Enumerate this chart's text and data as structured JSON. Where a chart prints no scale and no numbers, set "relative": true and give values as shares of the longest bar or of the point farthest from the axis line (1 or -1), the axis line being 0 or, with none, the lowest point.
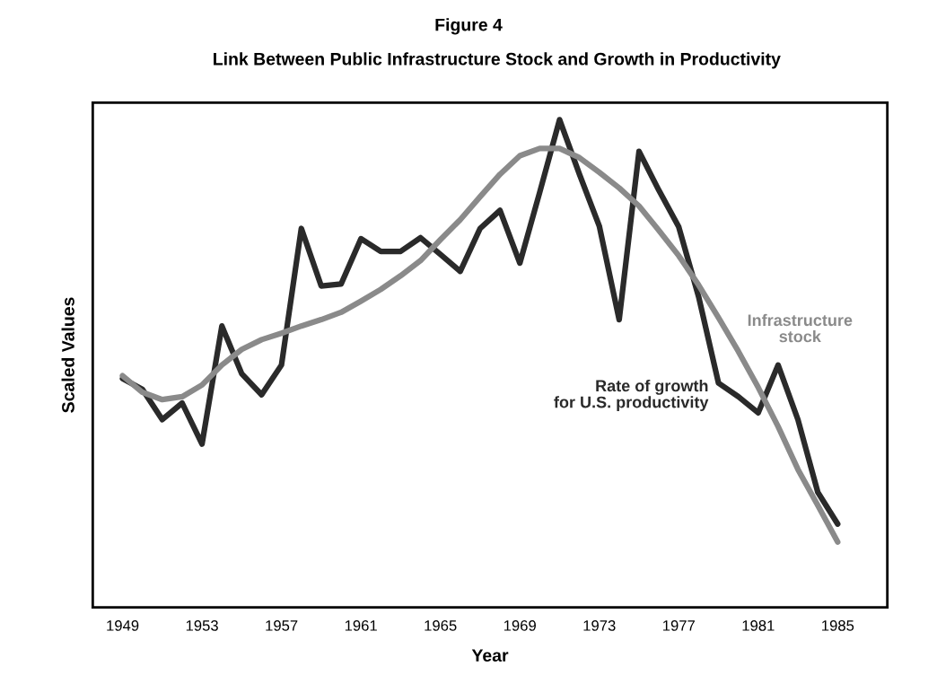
{
  "chart_data": {
    "type": "line",
    "title": "Figure 4",
    "subtitle": "Link Between Public Infrastructure Stock and Growth in Productivity",
    "xlabel": "Year",
    "ylabel": "Scaled Values",
    "relative": true,
    "x": [
      1949,
      1950,
      1951,
      1952,
      1953,
      1954,
      1955,
      1956,
      1957,
      1958,
      1959,
      1960,
      1961,
      1962,
      1963,
      1964,
      1965,
      1966,
      1967,
      1968,
      1969,
      1970,
      1971,
      1972,
      1973,
      1974,
      1975,
      1976,
      1977,
      1978,
      1979,
      1980,
      1981,
      1982,
      1983,
      1984,
      1985
    ],
    "xlim": [
      1947.5,
      1987.5
    ],
    "xticks": [
      1949,
      1953,
      1957,
      1961,
      1965,
      1969,
      1973,
      1977,
      1981,
      1985
    ],
    "series": [
      {
        "name": "Rate of growth\nfor U.S. productivity",
        "color": "#2a2a2a",
        "values": [
          0.469,
          0.447,
          0.385,
          0.419,
          0.335,
          0.577,
          0.479,
          0.436,
          0.497,
          0.777,
          0.659,
          0.663,
          0.756,
          0.73,
          0.73,
          0.758,
          0.724,
          0.689,
          0.777,
          0.814,
          0.706,
          0.851,
          1.0,
          0.888,
          0.782,
          0.59,
          0.935,
          0.855,
          0.78,
          0.637,
          0.46,
          0.432,
          0.399,
          0.497,
          0.385,
          0.236,
          0.171
        ]
      },
      {
        "name": "Infrastructure\nstock",
        "color": "#8a8a8a",
        "values": [
          0.475,
          0.441,
          0.426,
          0.432,
          0.456,
          0.497,
          0.529,
          0.549,
          0.562,
          0.577,
          0.59,
          0.605,
          0.628,
          0.652,
          0.68,
          0.711,
          0.754,
          0.795,
          0.842,
          0.888,
          0.926,
          0.941,
          0.941,
          0.922,
          0.892,
          0.86,
          0.823,
          0.773,
          0.721,
          0.661,
          0.594,
          0.525,
          0.451,
          0.371,
          0.283,
          0.209,
          0.134
        ]
      }
    ],
    "grid": false,
    "legend": false
  }
}
